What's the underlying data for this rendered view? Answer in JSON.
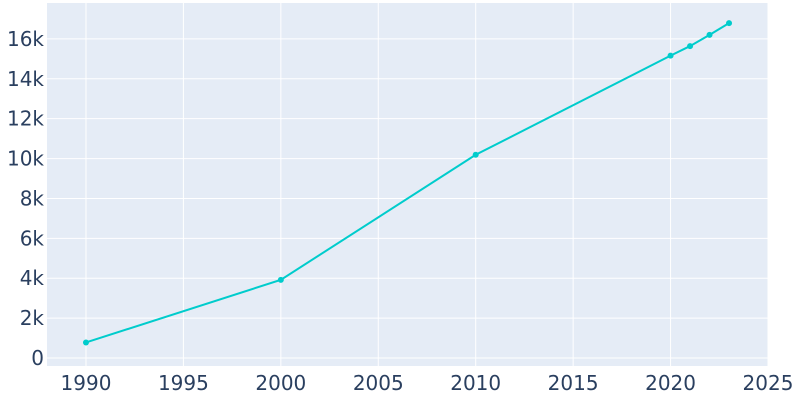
{
  "chart_data": {
    "type": "line",
    "title": "",
    "xlabel": "",
    "ylabel": "",
    "x": [
      1990,
      2000,
      2010,
      2020,
      2021,
      2022,
      2023
    ],
    "series": [
      {
        "values": [
          780,
          3920,
          10190,
          15160,
          15640,
          16200,
          16790
        ]
      }
    ],
    "xlim": [
      1988,
      2025
    ],
    "ylim": [
      -400,
      17800
    ],
    "x_ticks": [
      1990,
      1995,
      2000,
      2005,
      2010,
      2015,
      2020,
      2025
    ],
    "x_tick_labels": [
      "1990",
      "1995",
      "2000",
      "2005",
      "2010",
      "2015",
      "2020",
      "2025"
    ],
    "y_ticks": [
      0,
      2000,
      4000,
      6000,
      8000,
      10000,
      12000,
      14000,
      16000
    ],
    "y_tick_labels": [
      "0",
      "2k",
      "4k",
      "6k",
      "8k",
      "10k",
      "12k",
      "14k",
      "16k"
    ],
    "grid": true,
    "colors": {
      "line": "#00cccc",
      "background": "#e5ecf6",
      "grid": "#ffffff",
      "text": "#2a3f5f"
    }
  }
}
